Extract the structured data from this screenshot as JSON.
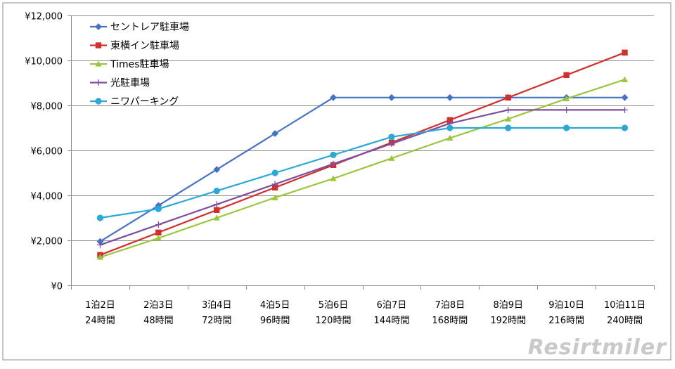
{
  "chart_data": {
    "type": "line",
    "categories": [
      [
        "1泊2日",
        "24時間"
      ],
      [
        "2泊3日",
        "48時間"
      ],
      [
        "3泊4日",
        "72時間"
      ],
      [
        "4泊5日",
        "96時間"
      ],
      [
        "5泊6日",
        "120時間"
      ],
      [
        "6泊7日",
        "144時間"
      ],
      [
        "7泊8日",
        "168時間"
      ],
      [
        "8泊9日",
        "192時間"
      ],
      [
        "9泊10日",
        "216時間"
      ],
      [
        "10泊11日",
        "240時間"
      ]
    ],
    "ylim": [
      0,
      12000
    ],
    "yticks": [
      {
        "value": 0,
        "label": "¥0"
      },
      {
        "value": 2000,
        "label": "¥2,000"
      },
      {
        "value": 4000,
        "label": "¥4,000"
      },
      {
        "value": 6000,
        "label": "¥6,000"
      },
      {
        "value": 8000,
        "label": "¥8,000"
      },
      {
        "value": 10000,
        "label": "¥10,000"
      },
      {
        "value": 12000,
        "label": "¥12,000"
      }
    ],
    "grid": true,
    "legend_position": "top-left",
    "series": [
      {
        "name": "セントレア駐車場",
        "color": "#4472C4",
        "marker": "diamond",
        "values": [
          1950,
          3550,
          5150,
          6750,
          8350,
          8350,
          8350,
          8350,
          8350,
          8350
        ]
      },
      {
        "name": "東横イン駐車場",
        "color": "#D0312D",
        "marker": "square",
        "values": [
          1350,
          2350,
          3350,
          4350,
          5350,
          6350,
          7350,
          8350,
          9350,
          10350
        ]
      },
      {
        "name": "Times駐車場",
        "color": "#9BC53D",
        "marker": "triangle",
        "values": [
          1250,
          2100,
          3000,
          3900,
          4750,
          5650,
          6550,
          7400,
          8300,
          9150
        ]
      },
      {
        "name": "光駐車場",
        "color": "#7D4E9E",
        "marker": "plus",
        "values": [
          1800,
          2700,
          3600,
          4500,
          5400,
          6300,
          7200,
          7800,
          7800,
          7800
        ]
      },
      {
        "name": "ニワパーキング",
        "color": "#2BA8D8",
        "marker": "circle",
        "values": [
          3000,
          3400,
          4200,
          5000,
          5800,
          6600,
          7000,
          7000,
          7000,
          7000
        ]
      }
    ]
  },
  "watermark": "Resirtmiler"
}
